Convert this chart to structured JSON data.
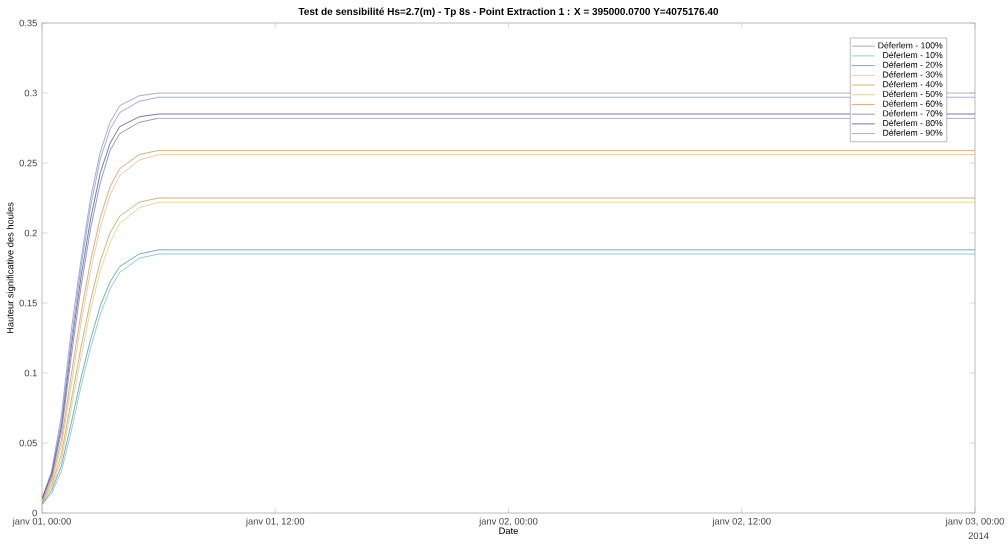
{
  "chart_data": {
    "type": "line",
    "title": "Test de sensibilité Hs=2.7(m) - Tp 8s - Point Extraction 1 : X = 395000.0700 Y=4075176.40",
    "xlabel": "Date",
    "ylabel": "Hauteur significative des houles",
    "x": [
      "2014-01-01T00:00",
      "2014-01-01T00:30",
      "2014-01-01T01:00",
      "2014-01-01T01:30",
      "2014-01-01T02:00",
      "2014-01-01T02:30",
      "2014-01-01T03:00",
      "2014-01-01T03:30",
      "2014-01-01T04:00",
      "2014-01-01T05:00",
      "2014-01-01T06:00",
      "2014-01-03T00:00"
    ],
    "xlim": [
      "2014-01-01T00:00",
      "2014-01-03T00:00"
    ],
    "xticks": [
      {
        "value": "2014-01-01T00:00",
        "label": "janv 01, 00:00"
      },
      {
        "value": "2014-01-01T12:00",
        "label": "janv 01, 12:00"
      },
      {
        "value": "2014-01-02T00:00",
        "label": "janv 02, 00:00"
      },
      {
        "value": "2014-01-02T12:00",
        "label": "janv 02, 12:00"
      },
      {
        "value": "2014-01-03T00:00",
        "label": "janv 03, 00:00"
      }
    ],
    "ylim": [
      0,
      0.35
    ],
    "yticks": [
      0,
      0.05,
      0.1,
      0.15,
      0.2,
      0.25,
      0.3,
      0.35
    ],
    "annotations": [
      "2014"
    ],
    "legend": "top right",
    "grid": false,
    "series": [
      {
        "name": "Déferlem - 100%",
        "color": "#7a7fb8",
        "values": [
          0.01,
          0.03,
          0.07,
          0.13,
          0.18,
          0.225,
          0.258,
          0.279,
          0.291,
          0.298,
          0.3,
          0.3
        ]
      },
      {
        "name": "Déferlem - 10%",
        "color": "#60b0d0",
        "values": [
          0.006,
          0.014,
          0.03,
          0.058,
          0.09,
          0.118,
          0.142,
          0.16,
          0.172,
          0.182,
          0.185,
          0.185
        ]
      },
      {
        "name": "Déferlem - 20%",
        "color": "#2a8a8a",
        "values": [
          0.006,
          0.016,
          0.034,
          0.064,
          0.096,
          0.124,
          0.148,
          0.165,
          0.176,
          0.185,
          0.188,
          0.188
        ]
      },
      {
        "name": "Déferlem - 30%",
        "color": "#e0c060",
        "values": [
          0.007,
          0.018,
          0.038,
          0.074,
          0.111,
          0.145,
          0.173,
          0.193,
          0.207,
          0.218,
          0.222,
          0.222
        ]
      },
      {
        "name": "Déferlem - 40%",
        "color": "#b09040",
        "values": [
          0.007,
          0.02,
          0.042,
          0.08,
          0.118,
          0.152,
          0.18,
          0.2,
          0.212,
          0.222,
          0.225,
          0.225
        ]
      },
      {
        "name": "Déferlem - 50%",
        "color": "#e8b070",
        "values": [
          0.008,
          0.022,
          0.048,
          0.091,
          0.135,
          0.173,
          0.204,
          0.227,
          0.241,
          0.252,
          0.256,
          0.256
        ]
      },
      {
        "name": "Déferlem - 60%",
        "color": "#d08040",
        "values": [
          0.008,
          0.024,
          0.052,
          0.098,
          0.142,
          0.18,
          0.211,
          0.233,
          0.246,
          0.256,
          0.259,
          0.259
        ]
      },
      {
        "name": "Déferlem - 70%",
        "color": "#6060a0",
        "values": [
          0.01,
          0.026,
          0.058,
          0.111,
          0.161,
          0.203,
          0.236,
          0.259,
          0.271,
          0.279,
          0.282,
          0.282
        ]
      },
      {
        "name": "Déferlem - 80%",
        "color": "#2b3580",
        "values": [
          0.01,
          0.028,
          0.062,
          0.118,
          0.168,
          0.21,
          0.243,
          0.264,
          0.276,
          0.283,
          0.285,
          0.285
        ]
      },
      {
        "name": "Déferlem - 90%",
        "color": "#7080d0",
        "values": [
          0.01,
          0.029,
          0.065,
          0.123,
          0.175,
          0.219,
          0.253,
          0.274,
          0.286,
          0.294,
          0.297,
          0.297
        ]
      }
    ]
  }
}
